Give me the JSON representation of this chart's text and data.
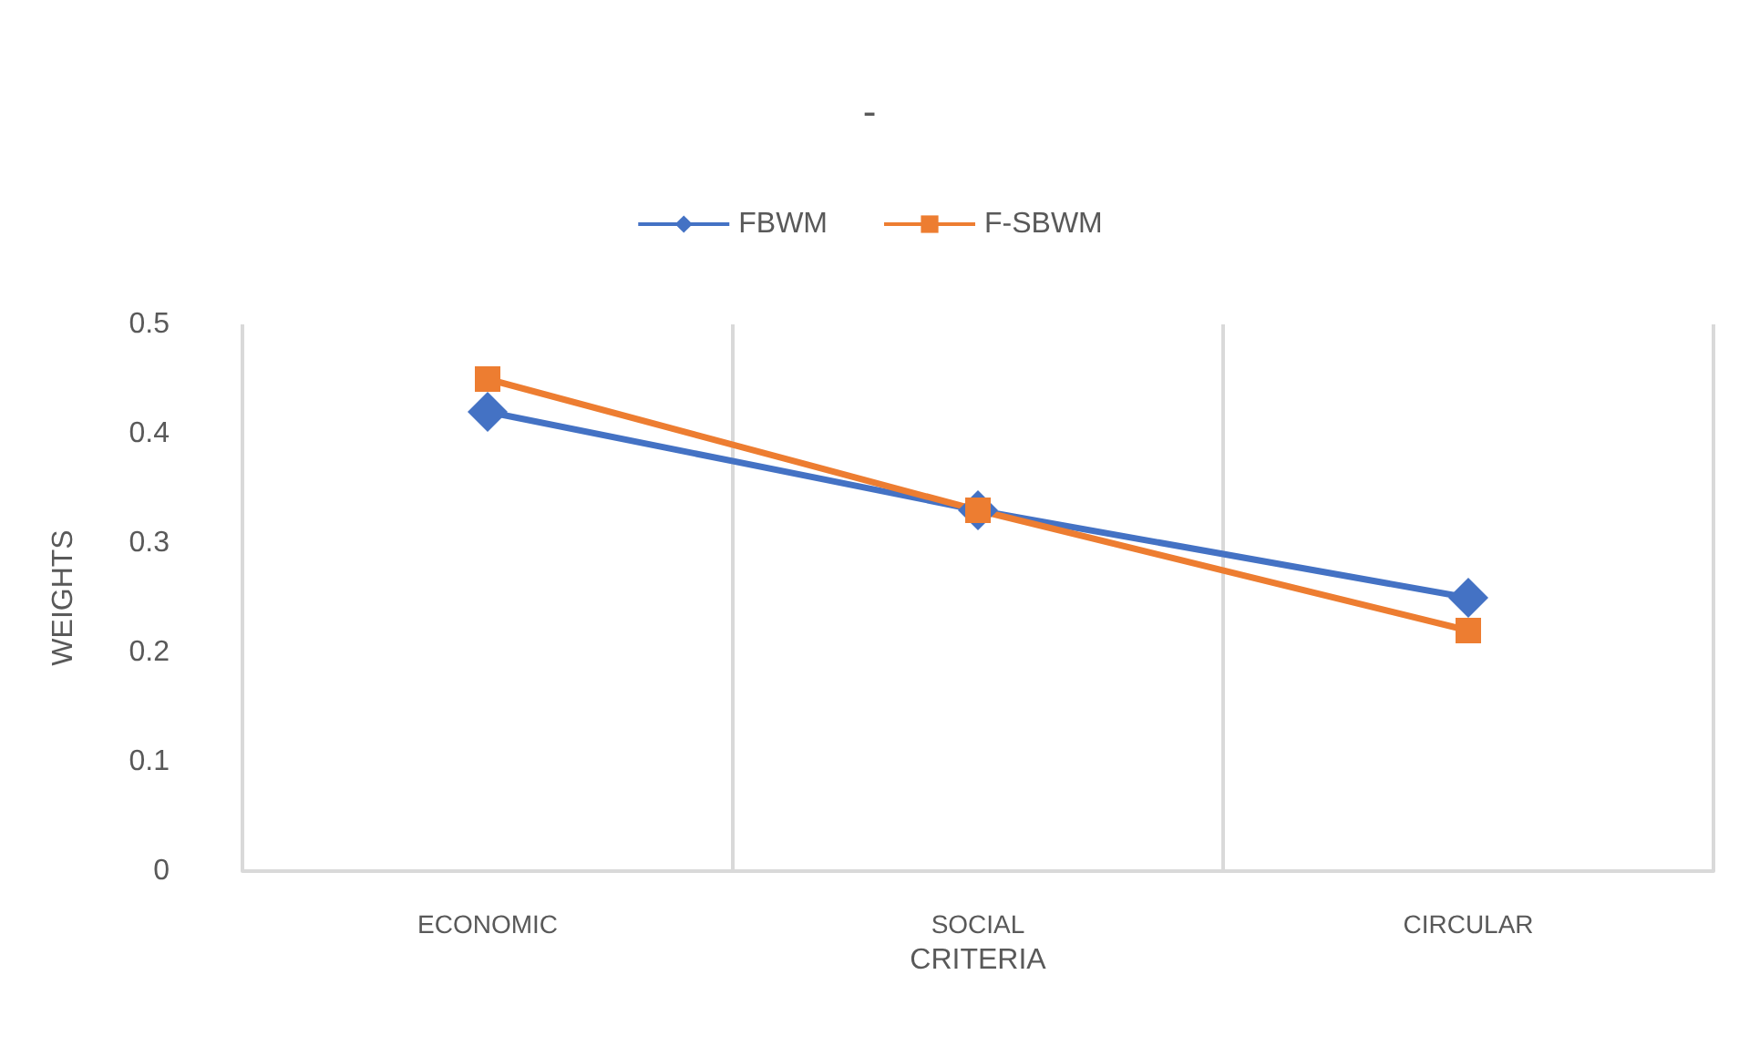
{
  "chart_data": {
    "type": "line",
    "title": "-",
    "xlabel": "CRITERIA",
    "ylabel": "WEIGHTS",
    "categories": [
      "ECONOMIC",
      "SOCIAL",
      "CIRCULAR"
    ],
    "series": [
      {
        "name": "FBWM",
        "color": "#4472c4",
        "marker": "diamond",
        "values": [
          0.42,
          0.33,
          0.25
        ]
      },
      {
        "name": "F-SBWM",
        "color": "#ed7d31",
        "marker": "square",
        "values": [
          0.45,
          0.33,
          0.22
        ]
      }
    ],
    "ylim": [
      0,
      0.5
    ],
    "yticks": [
      0,
      0.1,
      0.2,
      0.3,
      0.4,
      0.5
    ],
    "grid": "x",
    "legend": "top"
  }
}
